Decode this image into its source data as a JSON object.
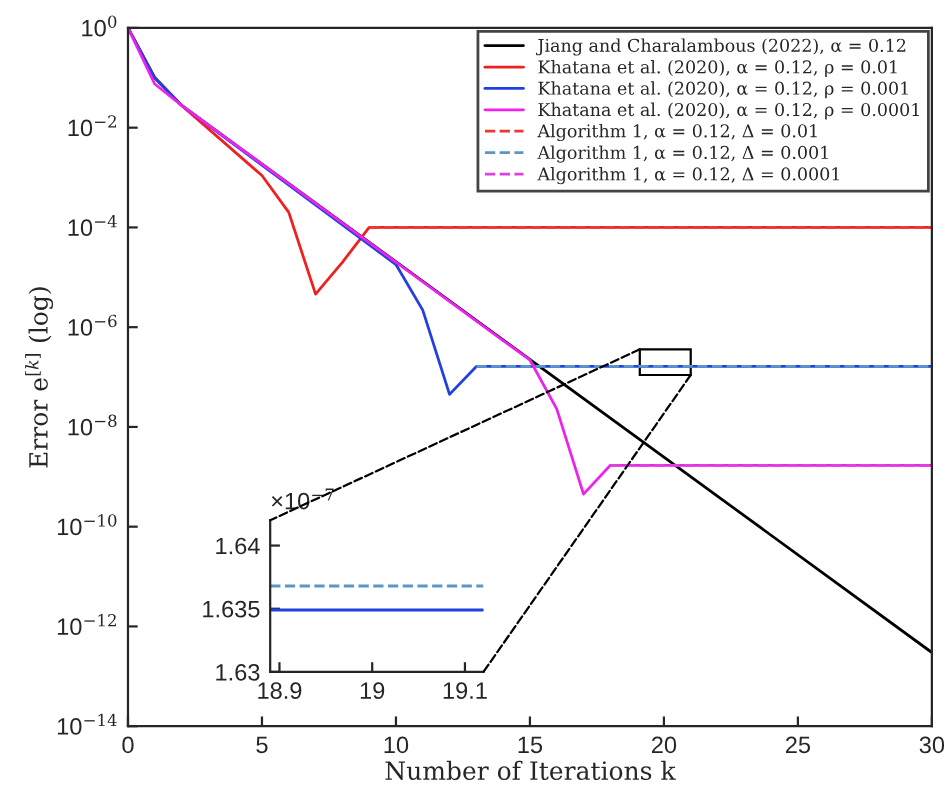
{
  "chart_data": [
    {
      "type": "line",
      "xlabel": "Number of Iterations k",
      "ylabel": "Error e$^{[k]}$ (log)",
      "log": "y",
      "xlim": [
        0,
        30
      ],
      "xticks": [
        0,
        5,
        10,
        15,
        20,
        25,
        30
      ],
      "ylim": [
        1e-14,
        1
      ],
      "yticks": [
        {
          "value": 1e-14,
          "label": "10$^{−14}$"
        },
        {
          "value": 1e-12,
          "label": "10$^{−12}$"
        },
        {
          "value": 1e-10,
          "label": "10$^{−10}$"
        },
        {
          "value": 1e-08,
          "label": "10$^{−8}$"
        },
        {
          "value": 1e-06,
          "label": "10$^{−6}$"
        },
        {
          "value": 0.0001,
          "label": "10$^{−4}$"
        },
        {
          "value": 0.01,
          "label": "10$^{−2}$"
        },
        {
          "value": 1,
          "label": "10$^{0}$"
        }
      ],
      "grid": false,
      "legend": "top right",
      "marker": "none",
      "series": [
        {
          "name": "Jiang and Charalambous (2022), α = 0.12",
          "color": "#000000",
          "line_style": "solid",
          "x": [
            0,
            1,
            2,
            30
          ],
          "values": [
            1,
            0.1,
            0.028,
            3e-13
          ]
        },
        {
          "name": "Khatana et al. (2020), α = 0.12, ρ = 0.01",
          "color": "#ee2020",
          "line_style": "solid",
          "x": [
            0,
            1,
            2,
            5,
            6,
            7,
            8,
            9,
            30
          ],
          "values": [
            1,
            0.1,
            0.028,
            0.0011,
            0.0002,
            4.6e-06,
            2e-05,
            0.0001,
            0.0001
          ]
        },
        {
          "name": "Khatana et al. (2020), α = 0.12, ρ = 0.001",
          "color": "#2040e0",
          "line_style": "solid",
          "x": [
            0,
            1,
            2,
            10,
            11,
            12,
            13,
            30
          ],
          "values": [
            1,
            0.1,
            0.028,
            1.8e-05,
            2.2e-06,
            4.5e-08,
            1.634e-07,
            1.634e-07
          ]
        },
        {
          "name": "Khatana et al. (2020), α = 0.12, ρ = 0.0001",
          "color": "#ee22ee",
          "line_style": "solid",
          "x": [
            0,
            1,
            2,
            14,
            15,
            16,
            17,
            18,
            30
          ],
          "values": [
            1,
            0.075,
            0.028,
            5.4e-07,
            2.2e-07,
            2.3e-08,
            4.5e-10,
            1.7e-09,
            1.7e-09
          ]
        },
        {
          "name": "Algorithm 1, α = 0.12, Δ = 0.01",
          "color": "#e83a30",
          "line_style": "dashed",
          "x": [
            9,
            30
          ],
          "values": [
            0.0001,
            0.0001
          ]
        },
        {
          "name": "Algorithm 1, α = 0.12, Δ = 0.001",
          "color": "#5a96c8",
          "line_style": "dashed",
          "x": [
            13,
            30
          ],
          "values": [
            1.637e-07,
            1.637e-07
          ]
        },
        {
          "name": "Algorithm 1, α = 0.12, Δ = 0.0001",
          "color": "#e040e0",
          "line_style": "dashed",
          "x": [
            18,
            30
          ],
          "values": [
            1.7e-09,
            1.7e-09
          ]
        }
      ]
    },
    {
      "type": "line",
      "xlim": [
        18.89,
        19.12
      ],
      "xticks": [
        18.9,
        19,
        19.1
      ],
      "ylim": [
        1.63,
        1.642
      ],
      "yticks": [
        1.63,
        1.635,
        1.64
      ],
      "grid": false,
      "legend": false,
      "marker": "none",
      "annotations": [
        "×10$^{−7}$"
      ],
      "series": [
        {
          "color": "#5a96c8",
          "line_style": "dashed",
          "x": [
            18.89,
            19.12
          ],
          "values": [
            1.6368,
            1.6368
          ]
        },
        {
          "color": "#2040e0",
          "line_style": "solid",
          "x": [
            18.89,
            19.12
          ],
          "values": [
            1.6349,
            1.6349
          ]
        }
      ]
    }
  ]
}
